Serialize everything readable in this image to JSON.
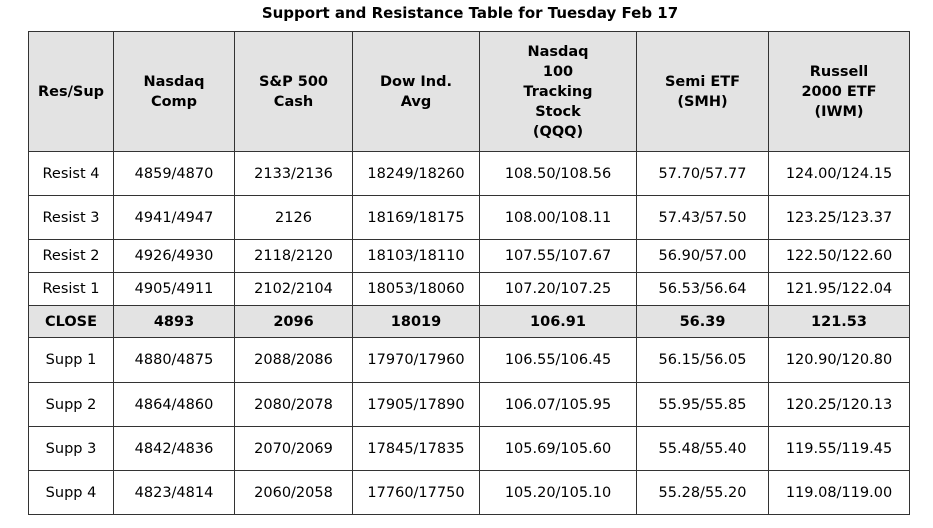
{
  "title": "Support and Resistance Table for Tuesday Feb 17",
  "columns": [
    [
      "Res/Sup"
    ],
    [
      "Nasdaq",
      "Comp"
    ],
    [
      "S&P 500",
      "Cash"
    ],
    [
      "Dow Ind.",
      "Avg"
    ],
    [
      "Nasdaq",
      "100",
      "Tracking",
      "Stock",
      "(QQQ)"
    ],
    [
      "Semi ETF",
      "(SMH)"
    ],
    [
      "Russell",
      "2000 ETF",
      "(IWM)"
    ]
  ],
  "rows": [
    {
      "cells": [
        "Resist 4",
        "4859/4870",
        "2133/2136",
        "18249/18260",
        "108.50/108.56",
        "57.70/57.77",
        "124.00/124.15"
      ]
    },
    {
      "cells": [
        "Resist 3",
        "4941/4947",
        "2126",
        "18169/18175",
        "108.00/108.11",
        "57.43/57.50",
        "123.25/123.37"
      ]
    },
    {
      "cells": [
        "Resist 2",
        "4926/4930",
        "2118/2120",
        "18103/18110",
        "107.55/107.67",
        "56.90/57.00",
        "122.50/122.60"
      ]
    },
    {
      "cells": [
        "Resist 1",
        "4905/4911",
        "2102/2104",
        "18053/18060",
        "107.20/107.25",
        "56.53/56.64",
        "121.95/122.04"
      ]
    },
    {
      "cells": [
        "CLOSE",
        "4893",
        "2096",
        "18019",
        "106.91",
        "56.39",
        "121.53"
      ]
    },
    {
      "cells": [
        "Supp 1",
        "4880/4875",
        "2088/2086",
        "17970/17960",
        "106.55/106.45",
        "56.15/56.05",
        "120.90/120.80"
      ]
    },
    {
      "cells": [
        "Supp 2",
        "4864/4860",
        "2080/2078",
        "17905/17890",
        "106.07/105.95",
        "55.95/55.85",
        "120.25/120.13"
      ]
    },
    {
      "cells": [
        "Supp 3",
        "4842/4836",
        "2070/2069",
        "17845/17835",
        "105.69/105.60",
        "55.48/55.40",
        "119.55/119.45"
      ]
    },
    {
      "cells": [
        "Supp 4",
        "4823/4814",
        "2060/2058",
        "17760/17750",
        "105.20/105.10",
        "55.28/55.20",
        "119.08/119.00"
      ]
    }
  ]
}
